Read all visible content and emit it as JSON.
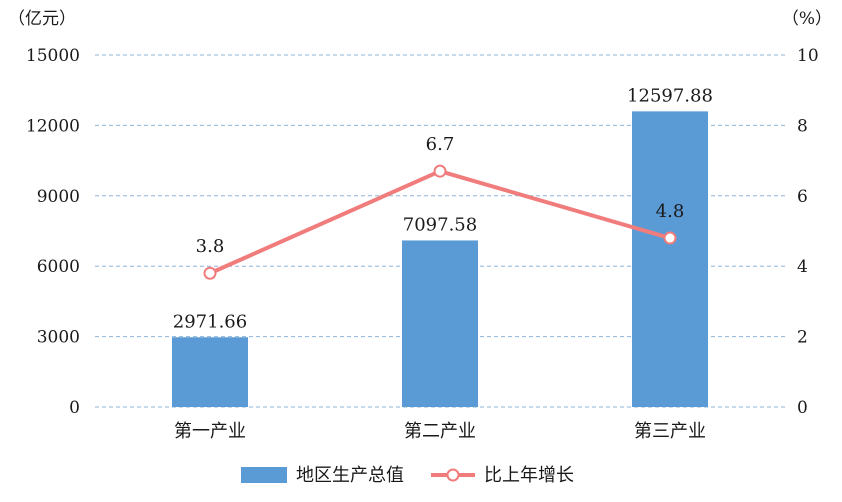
{
  "chart_data": {
    "type": "bar",
    "categories": [
      "第一产业",
      "第二产业",
      "第三产业"
    ],
    "left_axis": {
      "unit": "（亿元）",
      "ylim": [
        0,
        15000
      ],
      "ticks": [
        0,
        3000,
        6000,
        9000,
        12000,
        15000
      ]
    },
    "right_axis": {
      "unit": "（%）",
      "ylim": [
        0,
        10
      ],
      "ticks": [
        0,
        2,
        4,
        6,
        8,
        10
      ]
    },
    "grid": true,
    "legend_position": "bottom",
    "series": [
      {
        "name": "地区生产总值",
        "type": "bar",
        "axis": "left",
        "color": "#5b9bd5",
        "values": [
          2971.66,
          7097.58,
          12597.88
        ],
        "labels": [
          "2971.66",
          "7097.58",
          "12597.88"
        ]
      },
      {
        "name": "比上年增长",
        "type": "line",
        "axis": "right",
        "color": "#f07c7c",
        "values": [
          3.8,
          6.7,
          4.8
        ],
        "labels": [
          "3.8",
          "6.7",
          "4.8"
        ]
      }
    ]
  }
}
